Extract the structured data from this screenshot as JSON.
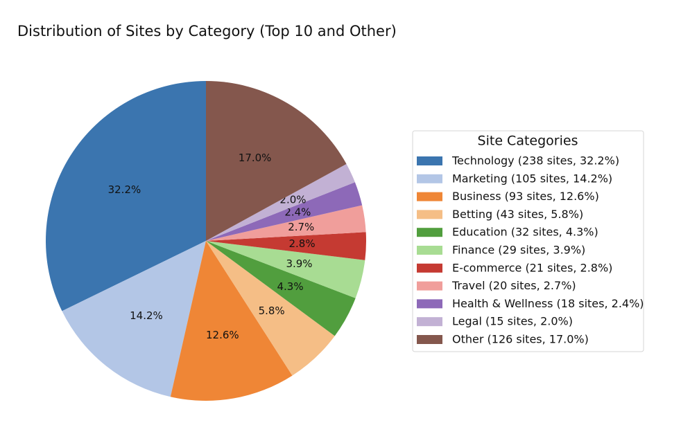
{
  "chart_data": {
    "type": "pie",
    "title": "Distribution of Sites by Category (Top 10 and Other)",
    "legend_title": "Site Categories",
    "legend": "right",
    "categories": [
      "Technology (238 sites, 32.2%)",
      "Marketing (105 sites, 14.2%)",
      "Business (93 sites, 12.6%)",
      "Betting (43 sites, 5.8%)",
      "Education (32 sites, 4.3%)",
      "Finance (29 sites, 3.9%)",
      "E-commerce (21 sites, 2.8%)",
      "Travel (20 sites, 2.7%)",
      "Health & Wellness (18 sites, 2.4%)",
      "Legal (15 sites, 2.0%)",
      "Other (126 sites, 17.0%)"
    ],
    "values": [
      32.2,
      14.2,
      12.6,
      5.8,
      4.3,
      3.9,
      2.8,
      2.7,
      2.4,
      2.0,
      17.0
    ],
    "value_labels": [
      "32.2%",
      "14.2%",
      "12.6%",
      "5.8%",
      "4.3%",
      "3.9%",
      "2.8%",
      "2.7%",
      "2.4%",
      "2.0%",
      "17.0%"
    ],
    "colors": [
      "#3b75af",
      "#b3c6e6",
      "#ef8636",
      "#f5be86",
      "#519e3e",
      "#a8dc93",
      "#c53a32",
      "#f09e9b",
      "#8d69b8",
      "#c2b1d4",
      "#84574d"
    ]
  }
}
